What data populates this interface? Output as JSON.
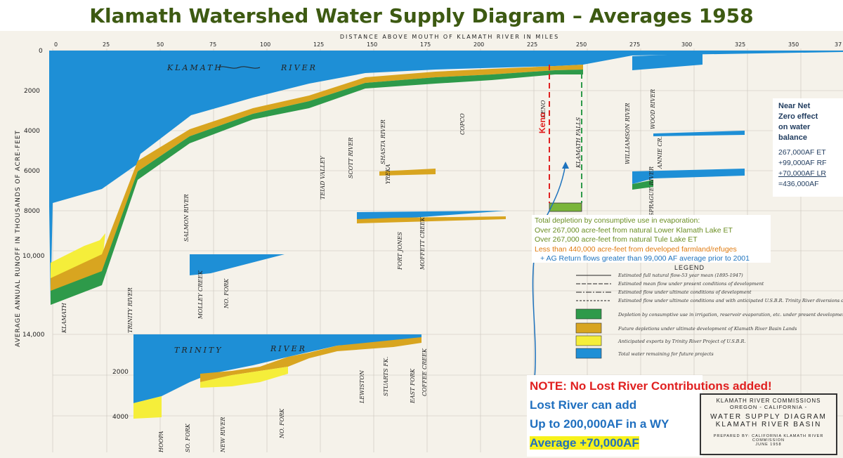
{
  "title": "Klamath Watershed Water Supply Diagram – Averages 1958",
  "axis": {
    "x_title": "DISTANCE ABOVE MOUTH OF KLAMATH RIVER IN MILES",
    "x_ticks": [
      "0",
      "25",
      "50",
      "75",
      "100",
      "125",
      "150",
      "175",
      "200",
      "225",
      "250",
      "275",
      "300",
      "325",
      "350",
      "37"
    ],
    "y_title": "AVERAGE ANNUAL RUNOFF IN THOUSANDS OF ACRE-FEET",
    "y_ticks": [
      "0",
      "2000",
      "4000",
      "6000",
      "8000",
      "10,000",
      "14,000"
    ],
    "trinity_ticks": [
      "2000",
      "4000"
    ]
  },
  "rivers": {
    "klamath": "KLAMATH",
    "klamath_suffix": "RIVER",
    "trinity": "TRINITY",
    "trinity_suffix": "RIVER"
  },
  "tributaries": [
    "KLAMATH",
    "TRINITY RIVER",
    "SALMON RIVER",
    "HOOPA",
    "SO. FORK",
    "NEW RIVER",
    "NO. FORK",
    "LEWISTON",
    "STUARTS FK.",
    "EAST FORK",
    "COFFEE CREEK",
    "MOLLEY CREEK",
    "NO. FORK",
    "TEIAD VALLEY",
    "SCOTT RIVER",
    "SHASTA RIVER",
    "YREKA",
    "FORT JONES",
    "MOFFETT CREEK",
    "COPCO",
    "KENO",
    "KLAMATH FALLS",
    "WILLIAMSON RIVER",
    "WOOD RIVER",
    "ANNIE CR.",
    "SPRAGUE RIVER"
  ],
  "annotation_keno": "Keno",
  "depletion_note": {
    "line1": "Total depletion by consumptive use in evaporation:",
    "line2": "Over 267,000 acre-feet from natural Lower Klamath Lake ET",
    "line3": "Over 267,000 acre-feet from natural Tule Lake ET",
    "line4": "Less than 440,000 acre-feet from developed farmland/refuges",
    "line5": "+ AG Return flows greater than 99,000 AF average prior to 2001"
  },
  "net_panel": {
    "h1": "Near Net",
    "h2": "Zero effect",
    "h3": "on water",
    "h4": "balance",
    "c1": "267,000AF ET",
    "c2": "+99,000AF RF",
    "c3": "+70,000AF LR",
    "c4": "=436,000AF"
  },
  "note_panel": {
    "l1": "NOTE: No Lost River Contributions added!",
    "l2": "Lost River can add",
    "l3": "Up to 200,000AF in a WY",
    "l4": "Average +70,000AF"
  },
  "legend": {
    "title": "LEGEND",
    "items": [
      "Estimated full natural flow-53 year mean (1895-1947)",
      "Estimated mean flow under present conditions of development",
      "Estimated flow under ultimate conditions of development",
      "Estimated flow under ultimate conditions and with anticipated U.S.B.R. Trinity River diversions deducted",
      "Depletion by consumptive use in irrigation, reservoir evaporation, etc. under present development",
      "Future depletions under ultimate development of Klamath River Basin Lands",
      "Anticipated exports by Trinity River Project of U.S.B.R.",
      "Total water remaining for future projects"
    ]
  },
  "title_box": {
    "l1": "KLAMATH RIVER COMMISSIONS",
    "l2": "OREGON - CALIFORNIA -",
    "l3": "WATER SUPPLY DIAGRAM",
    "l4": "KLAMATH RIVER BASIN",
    "l5": "PREPARED BY: CALIFORNIA KLAMATH RIVER COMMISSION",
    "l6": "JUNE 1958"
  },
  "colors": {
    "blue": "#1e8fd6",
    "green": "#2e9a4a",
    "gold": "#d8a520",
    "yellow": "#f5ee3a",
    "title_green": "#3d5a12",
    "red": "#e02020"
  }
}
